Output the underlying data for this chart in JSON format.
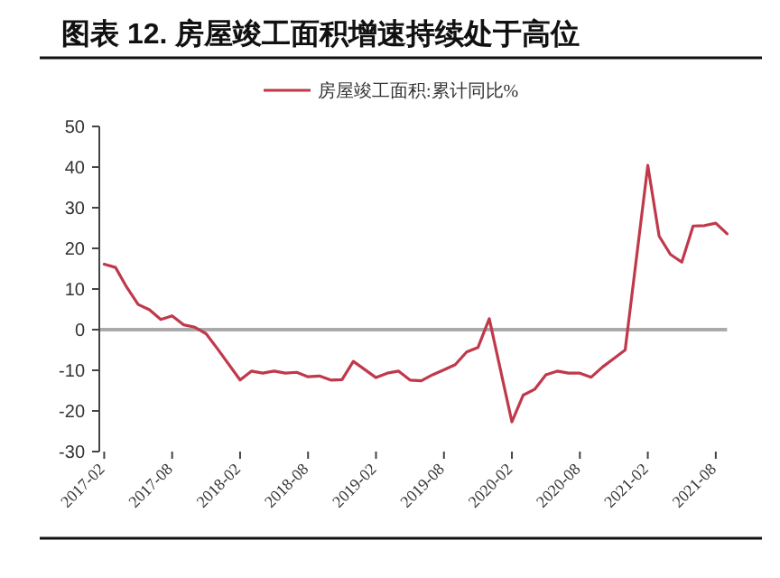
{
  "chart_data": {
    "type": "line",
    "title": "图表 12. 房屋竣工面积增速持续处于高位",
    "categories": [
      "2017-02",
      null,
      null,
      null,
      null,
      null,
      "2017-08",
      null,
      null,
      null,
      null,
      null,
      "2018-02",
      null,
      null,
      null,
      null,
      null,
      "2018-08",
      null,
      null,
      null,
      null,
      null,
      "2019-02",
      null,
      null,
      null,
      null,
      null,
      "2019-08",
      null,
      null,
      null,
      null,
      null,
      "2020-02",
      null,
      null,
      null,
      null,
      null,
      "2020-08",
      null,
      null,
      null,
      null,
      null,
      "2021-02",
      null,
      null,
      null,
      null,
      null,
      "2021-08",
      null
    ],
    "series": [
      {
        "name": "房屋竣工面积:累计同比%",
        "color": "#c0394b",
        "values": [
          16.1,
          15.3,
          10.4,
          6.2,
          4.9,
          2.5,
          3.4,
          1.2,
          0.6,
          -1,
          -4.7,
          null,
          -12.4,
          -10.2,
          -10.7,
          -10.2,
          -10.7,
          -10.5,
          -11.6,
          -11.4,
          -12.4,
          -12.3,
          -7.8,
          null,
          -11.8,
          -10.7,
          -10.2,
          -12.4,
          -12.6,
          -11.1,
          -9.9,
          -8.6,
          -5.5,
          -4.4,
          2.7,
          null,
          -22.7,
          -16.1,
          -14.7,
          -11.1,
          -10.2,
          -10.7,
          -10.7,
          -11.7,
          -9.2,
          -7.1,
          -5,
          null,
          40.4,
          23,
          18.5,
          16.6,
          25.5,
          25.6,
          26.2,
          23.6
        ]
      }
    ],
    "ylim": [
      -30,
      50
    ],
    "yticks": [
      -30,
      -20,
      -10,
      0,
      10,
      20,
      30,
      40,
      50
    ],
    "ref_lines": [
      {
        "axis": "y",
        "value": 0,
        "color": "#aaaaaa"
      }
    ],
    "legend": "top",
    "grid": false,
    "marker": "none",
    "line_style": "solid"
  }
}
